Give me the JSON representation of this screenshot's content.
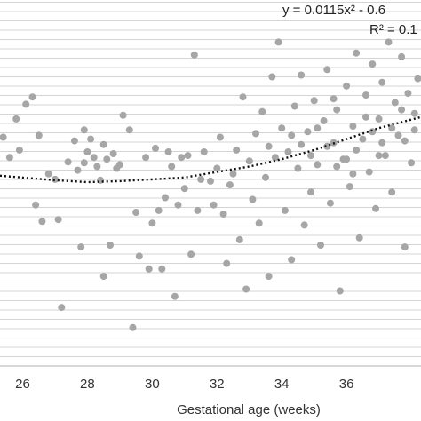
{
  "chart_data": {
    "type": "scatter",
    "title": "",
    "xlabel": "Gestational age (weeks)",
    "ylabel": "",
    "xlim": [
      25.3,
      38.3
    ],
    "ylim": [
      0,
      40
    ],
    "x_ticks": [
      26,
      28,
      30,
      32,
      34,
      36
    ],
    "grid": "horizontal",
    "annotations": {
      "equation": "y = 0.0115x² - 0.6",
      "r_squared": "R² = 0.1"
    },
    "trendline": {
      "style": "dotted",
      "points": [
        [
          25.3,
          20.8
        ],
        [
          27,
          20.3
        ],
        [
          28,
          20.1
        ],
        [
          29,
          20.2
        ],
        [
          30,
          20.4
        ],
        [
          31,
          20.6
        ],
        [
          32,
          21.2
        ],
        [
          33,
          21.8
        ],
        [
          34,
          22.6
        ],
        [
          35,
          23.6
        ],
        [
          36,
          24.8
        ],
        [
          37,
          26.0
        ],
        [
          38.3,
          27.2
        ]
      ]
    },
    "marker_color": "#a6a6a6",
    "points": [
      [
        25.4,
        25.0
      ],
      [
        25.6,
        22.8
      ],
      [
        25.8,
        27.0
      ],
      [
        25.9,
        23.6
      ],
      [
        26.1,
        28.6
      ],
      [
        26.3,
        29.4
      ],
      [
        26.4,
        17.6
      ],
      [
        26.5,
        25.2
      ],
      [
        26.6,
        15.8
      ],
      [
        26.8,
        21.0
      ],
      [
        27.0,
        20.4
      ],
      [
        27.1,
        16.0
      ],
      [
        27.2,
        6.4
      ],
      [
        27.4,
        22.3
      ],
      [
        27.6,
        24.6
      ],
      [
        27.7,
        21.4
      ],
      [
        27.8,
        13.0
      ],
      [
        27.9,
        25.8
      ],
      [
        27.9,
        22.2
      ],
      [
        28.0,
        23.4
      ],
      [
        28.1,
        24.8
      ],
      [
        28.2,
        22.8
      ],
      [
        28.3,
        21.8
      ],
      [
        28.4,
        20.3
      ],
      [
        28.5,
        24.2
      ],
      [
        28.5,
        9.8
      ],
      [
        28.6,
        22.6
      ],
      [
        28.7,
        13.2
      ],
      [
        28.8,
        23.2
      ],
      [
        28.9,
        21.6
      ],
      [
        29.0,
        22.0
      ],
      [
        29.1,
        27.4
      ],
      [
        29.3,
        25.8
      ],
      [
        29.4,
        4.2
      ],
      [
        29.5,
        16.8
      ],
      [
        29.6,
        12.0
      ],
      [
        29.8,
        22.8
      ],
      [
        29.9,
        10.6
      ],
      [
        30.0,
        15.6
      ],
      [
        30.1,
        23.8
      ],
      [
        30.2,
        17.0
      ],
      [
        30.3,
        10.6
      ],
      [
        30.4,
        18.4
      ],
      [
        30.5,
        23.4
      ],
      [
        30.6,
        21.8
      ],
      [
        30.7,
        7.6
      ],
      [
        30.8,
        17.6
      ],
      [
        30.9,
        22.8
      ],
      [
        31.0,
        19.4
      ],
      [
        31.1,
        23.0
      ],
      [
        31.2,
        12.2
      ],
      [
        31.3,
        34.0
      ],
      [
        31.4,
        17.0
      ],
      [
        31.5,
        20.4
      ],
      [
        31.6,
        23.4
      ],
      [
        31.8,
        20.2
      ],
      [
        31.9,
        17.6
      ],
      [
        32.0,
        21.6
      ],
      [
        32.1,
        25.0
      ],
      [
        32.2,
        16.6
      ],
      [
        32.3,
        11.2
      ],
      [
        32.4,
        19.8
      ],
      [
        32.5,
        21.0
      ],
      [
        32.6,
        23.6
      ],
      [
        32.7,
        13.8
      ],
      [
        32.8,
        29.4
      ],
      [
        32.9,
        8.4
      ],
      [
        33.0,
        22.4
      ],
      [
        33.1,
        18.2
      ],
      [
        33.2,
        25.4
      ],
      [
        33.3,
        15.6
      ],
      [
        33.4,
        27.8
      ],
      [
        33.5,
        20.6
      ],
      [
        33.6,
        9.8
      ],
      [
        33.7,
        31.6
      ],
      [
        33.8,
        22.8
      ],
      [
        33.9,
        35.4
      ],
      [
        33.9,
        40.4
      ],
      [
        34.0,
        26.0
      ],
      [
        34.1,
        17.0
      ],
      [
        34.2,
        23.4
      ],
      [
        34.3,
        11.6
      ],
      [
        34.4,
        28.4
      ],
      [
        34.5,
        21.6
      ],
      [
        34.6,
        31.8
      ],
      [
        34.7,
        15.4
      ],
      [
        34.8,
        25.6
      ],
      [
        34.9,
        19.0
      ],
      [
        35.0,
        29.0
      ],
      [
        35.1,
        22.0
      ],
      [
        35.2,
        13.2
      ],
      [
        35.3,
        26.8
      ],
      [
        35.4,
        32.4
      ],
      [
        35.5,
        17.8
      ],
      [
        35.6,
        24.4
      ],
      [
        35.7,
        28.0
      ],
      [
        35.8,
        8.2
      ],
      [
        35.9,
        22.6
      ],
      [
        36.0,
        30.6
      ],
      [
        36.1,
        19.6
      ],
      [
        36.2,
        26.2
      ],
      [
        36.3,
        34.2
      ],
      [
        36.4,
        14.0
      ],
      [
        36.5,
        24.8
      ],
      [
        36.6,
        29.6
      ],
      [
        36.7,
        21.2
      ],
      [
        36.8,
        33.0
      ],
      [
        36.9,
        17.2
      ],
      [
        37.0,
        27.0
      ],
      [
        37.1,
        31.0
      ],
      [
        37.2,
        23.0
      ],
      [
        37.3,
        35.4
      ],
      [
        37.4,
        19.0
      ],
      [
        37.5,
        28.8
      ],
      [
        37.6,
        25.2
      ],
      [
        37.7,
        33.8
      ],
      [
        37.8,
        13.0
      ],
      [
        37.9,
        29.8
      ],
      [
        38.0,
        22.2
      ],
      [
        38.1,
        27.6
      ],
      [
        38.2,
        31.4
      ],
      [
        35.4,
        24.0
      ],
      [
        35.7,
        21.8
      ],
      [
        36.3,
        23.6
      ],
      [
        36.8,
        25.6
      ],
      [
        37.1,
        24.4
      ],
      [
        34.6,
        24.2
      ],
      [
        35.1,
        26.0
      ],
      [
        36.0,
        22.6
      ],
      [
        36.6,
        27.2
      ],
      [
        37.4,
        26.0
      ],
      [
        37.8,
        24.6
      ],
      [
        38.1,
        25.8
      ],
      [
        34.9,
        23.0
      ],
      [
        35.6,
        29.2
      ],
      [
        36.2,
        21.0
      ],
      [
        37.0,
        23.0
      ],
      [
        37.7,
        28.0
      ],
      [
        33.6,
        24.0
      ],
      [
        34.3,
        25.2
      ]
    ]
  }
}
